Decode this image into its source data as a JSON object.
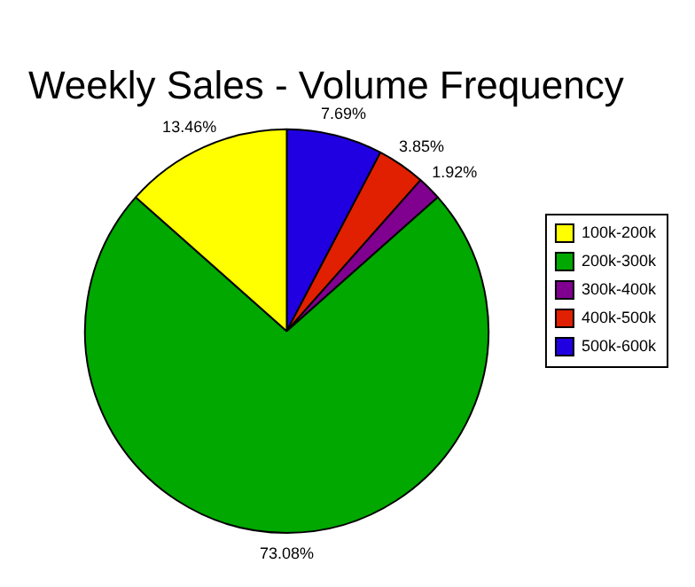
{
  "chart_data": {
    "type": "pie",
    "title": "Weekly Sales - Volume Frequency",
    "categories": [
      "100k-200k",
      "200k-300k",
      "300k-400k",
      "400k-500k",
      "500k-600k"
    ],
    "values": [
      13.46,
      73.08,
      1.92,
      3.85,
      7.69
    ],
    "value_labels": [
      "13.46%",
      "73.08%",
      "1.92%",
      "3.85%",
      "7.69%"
    ],
    "colors": [
      "#ffff00",
      "#00a800",
      "#800090",
      "#e02000",
      "#2000e0"
    ],
    "legend": "right"
  }
}
